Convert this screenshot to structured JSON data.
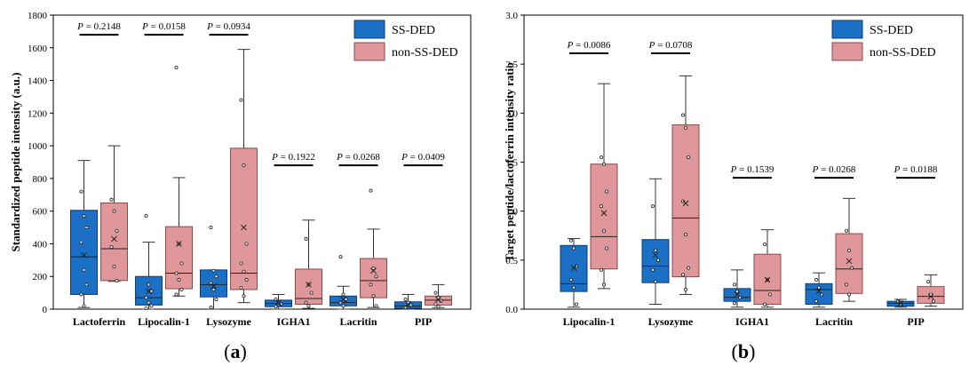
{
  "colors": {
    "ss": "#1b6fc4",
    "non": "#e0979a",
    "ss_edge": "#0d3f73",
    "non_edge": "#8a4a4c"
  },
  "chart_data": [
    {
      "type": "box",
      "panel_label": "(a)",
      "ylabel": "Standardized peptide intensity (a.u.)",
      "ylim": [
        0,
        1800
      ],
      "yticks": [
        0,
        200,
        400,
        600,
        800,
        1000,
        1200,
        1400,
        1600,
        1800
      ],
      "legend": [
        "SS-DED",
        "non-SS-DED"
      ],
      "legend_position": "top-right",
      "categories": [
        "Lactoferrin",
        "Lipocalin-1",
        "Lysozyme",
        "IGHA1",
        "Lacritin",
        "PIP"
      ],
      "pvalues": [
        "0.2148",
        "0.0158",
        "0.0934",
        "0.1922",
        "0.0268",
        "0.0409"
      ],
      "p_line_y": [
        1680,
        1680,
        1680,
        880,
        880,
        880
      ],
      "series": [
        {
          "name": "SS-DED",
          "boxes": [
            {
              "min": 10,
              "q1": 90,
              "median": 320,
              "q3": 605,
              "max": 910,
              "mean": 330,
              "points": [
                720,
                570,
                500,
                410,
                240,
                150,
                90,
                20
              ]
            },
            {
              "min": 0,
              "q1": 25,
              "median": 70,
              "q3": 200,
              "max": 410,
              "mean": 110,
              "points": [
                570,
                150,
                110,
                70,
                40,
                20,
                5
              ]
            },
            {
              "min": 0,
              "q1": 75,
              "median": 150,
              "q3": 240,
              "max": 240,
              "mean": 140,
              "points": [
                500,
                235,
                200,
                160,
                120,
                60,
                10
              ]
            },
            {
              "min": 0,
              "q1": 15,
              "median": 35,
              "q3": 55,
              "max": 90,
              "mean": 40,
              "points": [
                60,
                40,
                30,
                15
              ]
            },
            {
              "min": 0,
              "q1": 20,
              "median": 40,
              "q3": 80,
              "max": 140,
              "mean": 60,
              "points": [
                320,
                90,
                60,
                40,
                20
              ]
            },
            {
              "min": 0,
              "q1": 5,
              "median": 20,
              "q3": 45,
              "max": 90,
              "mean": 30,
              "points": [
                60,
                40,
                25,
                10
              ]
            }
          ]
        },
        {
          "name": "non-SS-DED",
          "boxes": [
            {
              "min": 170,
              "q1": 175,
              "median": 370,
              "q3": 650,
              "max": 1000,
              "mean": 430,
              "points": [
                670,
                600,
                480,
                380,
                260,
                175
              ]
            },
            {
              "min": 80,
              "q1": 125,
              "median": 220,
              "q3": 505,
              "max": 805,
              "mean": 400,
              "points": [
                1480,
                400,
                280,
                220,
                180,
                120,
                90
              ]
            },
            {
              "min": 40,
              "q1": 120,
              "median": 220,
              "q3": 985,
              "max": 1590,
              "mean": 500,
              "points": [
                1280,
                880,
                400,
                280,
                230,
                180,
                130,
                80
              ]
            },
            {
              "min": 5,
              "q1": 30,
              "median": 65,
              "q3": 245,
              "max": 545,
              "mean": 150,
              "points": [
                430,
                150,
                100,
                40,
                20
              ]
            },
            {
              "min": 10,
              "q1": 70,
              "median": 175,
              "q3": 310,
              "max": 490,
              "mean": 235,
              "points": [
                725,
                250,
                200,
                150,
                80,
                20
              ]
            },
            {
              "min": 10,
              "q1": 25,
              "median": 55,
              "q3": 80,
              "max": 150,
              "mean": 60,
              "points": [
                100,
                70,
                50,
                30,
                15
              ]
            }
          ]
        }
      ]
    },
    {
      "type": "box",
      "panel_label": "(b)",
      "ylabel": "Target peptide/lactoferrin intensity ratio",
      "ylim": [
        0,
        3.0
      ],
      "yticks": [
        "0.0",
        "0.5",
        "1.0",
        "1.5",
        "2.0",
        "2.5",
        "3.0"
      ],
      "legend": [
        "SS-DED",
        "non-SS-DED"
      ],
      "legend_position": "top-right",
      "categories": [
        "Lipocalin-1",
        "Lysozyme",
        "IGHA1",
        "Lacritin",
        "PIP"
      ],
      "pvalues": [
        "0.0086",
        "0.0708",
        "0.1539",
        "0.0268",
        "0.0188"
      ],
      "p_line_y": [
        2.61,
        2.61,
        1.34,
        1.34,
        1.34
      ],
      "series": [
        {
          "name": "SS-DED",
          "boxes": [
            {
              "min": 0.02,
              "q1": 0.18,
              "median": 0.26,
              "q3": 0.65,
              "max": 0.72,
              "mean": 0.42,
              "points": [
                0.7,
                0.62,
                0.44,
                0.3,
                0.22,
                0.05
              ]
            },
            {
              "min": 0.05,
              "q1": 0.27,
              "median": 0.44,
              "q3": 0.71,
              "max": 1.33,
              "mean": 0.55,
              "points": [
                1.05,
                0.6,
                0.5,
                0.4,
                0.28
              ]
            },
            {
              "min": 0.02,
              "q1": 0.08,
              "median": 0.12,
              "q3": 0.21,
              "max": 0.4,
              "mean": 0.15,
              "points": [
                0.25,
                0.18,
                0.12,
                0.06
              ]
            },
            {
              "min": 0.02,
              "q1": 0.05,
              "median": 0.2,
              "q3": 0.26,
              "max": 0.37,
              "mean": 0.18,
              "points": [
                0.3,
                0.22,
                0.15,
                0.08
              ]
            },
            {
              "min": 0.02,
              "q1": 0.03,
              "median": 0.06,
              "q3": 0.08,
              "max": 0.1,
              "mean": 0.06,
              "points": [
                0.08,
                0.05
              ]
            }
          ]
        },
        {
          "name": "non-SS-DED",
          "boxes": [
            {
              "min": 0.21,
              "q1": 0.41,
              "median": 0.74,
              "q3": 1.48,
              "max": 2.3,
              "mean": 0.98,
              "points": [
                1.55,
                1.48,
                1.2,
                1.05,
                0.8,
                0.62,
                0.4,
                0.25
              ]
            },
            {
              "min": 0.15,
              "q1": 0.33,
              "median": 0.93,
              "q3": 1.88,
              "max": 2.38,
              "mean": 1.08,
              "points": [
                1.98,
                1.85,
                1.55,
                1.1,
                0.76,
                0.42,
                0.35,
                0.2
              ]
            },
            {
              "min": 0.02,
              "q1": 0.05,
              "median": 0.19,
              "q3": 0.56,
              "max": 0.81,
              "mean": 0.3,
              "points": [
                0.66,
                0.3,
                0.15,
                0.05
              ]
            },
            {
              "min": 0.08,
              "q1": 0.16,
              "median": 0.41,
              "q3": 0.77,
              "max": 1.13,
              "mean": 0.49,
              "points": [
                0.8,
                0.6,
                0.42,
                0.25,
                0.15
              ]
            },
            {
              "min": 0.03,
              "q1": 0.06,
              "median": 0.13,
              "q3": 0.23,
              "max": 0.35,
              "mean": 0.13,
              "points": [
                0.28,
                0.15,
                0.08
              ]
            }
          ]
        }
      ]
    }
  ]
}
